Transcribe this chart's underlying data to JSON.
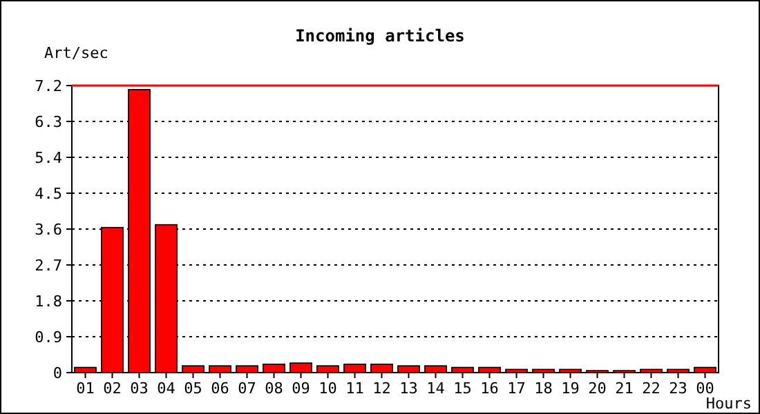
{
  "chart_data": {
    "type": "bar",
    "title": "Incoming articles",
    "ylabel": "Art/sec",
    "xlabel": "Hours",
    "categories": [
      "01",
      "02",
      "03",
      "04",
      "05",
      "06",
      "07",
      "08",
      "09",
      "10",
      "11",
      "12",
      "13",
      "14",
      "15",
      "16",
      "17",
      "18",
      "19",
      "20",
      "21",
      "22",
      "23",
      "00"
    ],
    "series": [
      {
        "color": "#ff0000",
        "values": [
          0.13,
          3.64,
          7.1,
          3.71,
          0.17,
          0.17,
          0.17,
          0.21,
          0.24,
          0.17,
          0.21,
          0.21,
          0.17,
          0.17,
          0.13,
          0.13,
          0.08,
          0.08,
          0.08,
          0.05,
          0.05,
          0.08,
          0.08,
          0.13
        ]
      }
    ],
    "ylim": [
      0,
      7.2
    ],
    "yticks": [
      0,
      0.9,
      1.8,
      2.7,
      3.6,
      4.5,
      5.4,
      6.3,
      7.2
    ],
    "grid": "y",
    "ref_lines": [
      {
        "axis": "y",
        "value": 7.2,
        "color": "#ff0000"
      }
    ]
  }
}
